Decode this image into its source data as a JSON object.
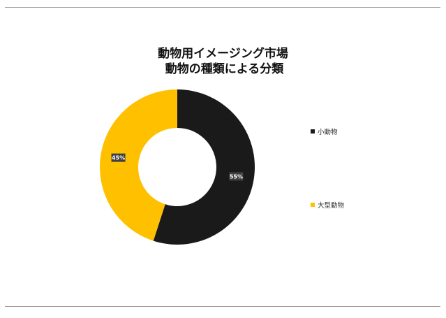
{
  "chart_data": {
    "type": "pie",
    "title_line1": "動物用イメージング市場",
    "title_line2": "動物の種類による分類",
    "categories": [
      "小動物",
      "大型動物"
    ],
    "values": [
      55,
      45
    ],
    "data_labels": [
      "55%",
      "45%"
    ],
    "colors": [
      "#1a1a1a",
      "#ffc000"
    ],
    "legend_position": "right"
  }
}
